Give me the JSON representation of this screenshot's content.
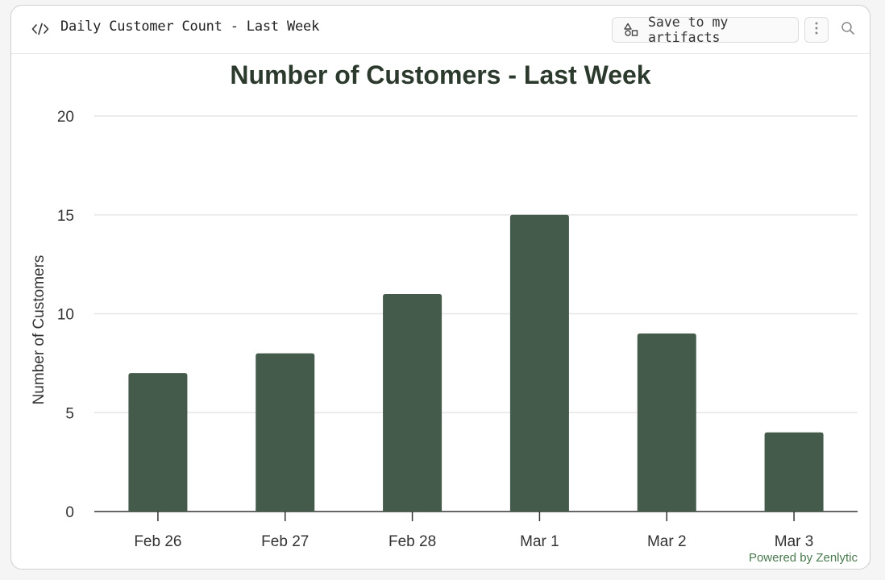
{
  "header": {
    "title": "Daily Customer Count - Last Week",
    "save_label": "Save to my artifacts",
    "icons": {
      "code": "code-icon",
      "save": "shapes-icon",
      "menu": "kebab-menu-icon",
      "search": "search-icon"
    }
  },
  "footer": {
    "powered_by": "Powered by Zenlytic"
  },
  "colors": {
    "bar": "#445a4b",
    "title": "#2c3a2e",
    "grid": "#e6e6e6",
    "axis": "#333333",
    "powered": "#4a7a4f"
  },
  "chart_data": {
    "type": "bar",
    "title": "Number of Customers - Last Week",
    "xlabel": "",
    "ylabel": "Number of Customers",
    "categories": [
      "Feb 26",
      "Feb 27",
      "Feb 28",
      "Mar 1",
      "Mar 2",
      "Mar 3"
    ],
    "values": [
      7,
      8,
      11,
      15,
      9,
      4
    ],
    "ylim": [
      0,
      20
    ],
    "yticks": [
      0,
      5,
      10,
      15,
      20
    ],
    "grid": true,
    "legend": "none"
  }
}
